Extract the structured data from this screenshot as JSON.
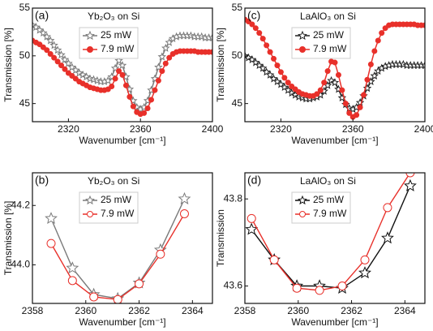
{
  "chart_data": [
    {
      "type": "line",
      "panel_label": "(a)",
      "annotation": "Yb₂O₃ on Si",
      "xlabel": "Wavenumber [cm⁻¹]",
      "ylabel": "Transmission [%]",
      "xlim": [
        2300,
        2400
      ],
      "xticks": [
        2320,
        2360,
        2400
      ],
      "ylim": [
        43.1,
        55
      ],
      "yticks": [
        45,
        50,
        55
      ],
      "legend": "upper center",
      "x": [
        2300,
        2302,
        2304,
        2306,
        2308,
        2310,
        2312,
        2314,
        2316,
        2318,
        2320,
        2322,
        2324,
        2326,
        2328,
        2330,
        2332,
        2334,
        2336,
        2338,
        2340,
        2342,
        2344,
        2346,
        2348,
        2350,
        2352,
        2354,
        2356,
        2358,
        2360,
        2362,
        2364,
        2366,
        2368,
        2370,
        2372,
        2374,
        2376,
        2378,
        2380,
        2382,
        2384,
        2386,
        2388,
        2390,
        2392,
        2394,
        2396,
        2398,
        2400
      ],
      "series": [
        {
          "name": "25 mW",
          "color": "#7a7a7a",
          "marker": "star",
          "filled": false,
          "values": [
            53.2,
            53.0,
            52.7,
            52.4,
            52.0,
            51.6,
            51.1,
            50.6,
            50.1,
            49.6,
            49.2,
            48.8,
            48.5,
            48.2,
            48.0,
            47.8,
            47.6,
            47.5,
            47.4,
            47.3,
            47.3,
            47.4,
            47.8,
            48.7,
            49.5,
            49.0,
            47.8,
            46.5,
            45.3,
            44.6,
            44.4,
            44.6,
            45.3,
            46.4,
            47.6,
            48.8,
            49.9,
            50.8,
            51.4,
            51.8,
            52.0,
            52.1,
            52.1,
            52.1,
            52.1,
            52.0,
            52.0,
            52.0,
            51.9,
            51.9,
            51.9
          ]
        },
        {
          "name": "7.9 mW",
          "color": "#e8302a",
          "marker": "circle",
          "filled": true,
          "values": [
            51.6,
            51.4,
            51.2,
            50.9,
            50.6,
            50.2,
            49.8,
            49.4,
            49.0,
            48.6,
            48.2,
            47.9,
            47.6,
            47.3,
            47.1,
            46.9,
            46.7,
            46.6,
            46.5,
            46.4,
            46.4,
            46.5,
            46.8,
            47.6,
            48.4,
            48.0,
            46.9,
            45.7,
            44.7,
            44.1,
            43.9,
            44.0,
            44.5,
            45.4,
            46.4,
            47.4,
            48.4,
            49.2,
            49.8,
            50.2,
            50.4,
            50.5,
            50.5,
            50.5,
            50.5,
            50.5,
            50.4,
            50.4,
            50.4,
            50.4,
            50.4
          ]
        }
      ]
    },
    {
      "type": "line",
      "panel_label": "(c)",
      "annotation": "LaAlO₃ on Si",
      "xlabel": "Wavenumber [cm⁻¹]",
      "ylabel": "Transmission [%]",
      "xlim": [
        2300,
        2400
      ],
      "xticks": [
        2320,
        2360,
        2400
      ],
      "ylim": [
        43.1,
        55
      ],
      "yticks": [
        45,
        50,
        55
      ],
      "legend": "upper center",
      "x": [
        2300,
        2302,
        2304,
        2306,
        2308,
        2310,
        2312,
        2314,
        2316,
        2318,
        2320,
        2322,
        2324,
        2326,
        2328,
        2330,
        2332,
        2334,
        2336,
        2338,
        2340,
        2342,
        2344,
        2346,
        2348,
        2350,
        2352,
        2354,
        2356,
        2358,
        2360,
        2362,
        2364,
        2366,
        2368,
        2370,
        2372,
        2374,
        2376,
        2378,
        2380,
        2382,
        2384,
        2386,
        2388,
        2390,
        2392,
        2394,
        2396,
        2398,
        2400
      ],
      "series": [
        {
          "name": "25 mW",
          "color": "#222222",
          "marker": "star",
          "filled": false,
          "values": [
            50.0,
            49.8,
            49.6,
            49.3,
            49.0,
            48.7,
            48.3,
            48.0,
            47.6,
            47.3,
            47.0,
            46.7,
            46.4,
            46.1,
            45.9,
            45.7,
            45.6,
            45.5,
            45.5,
            45.6,
            45.7,
            45.9,
            46.3,
            46.9,
            47.4,
            47.2,
            46.5,
            45.6,
            44.9,
            44.5,
            44.4,
            44.6,
            45.1,
            45.8,
            46.6,
            47.3,
            47.9,
            48.4,
            48.7,
            48.9,
            49.0,
            49.1,
            49.1,
            49.1,
            49.1,
            49.0,
            49.0,
            49.0,
            49.0,
            49.0,
            49.0
          ]
        },
        {
          "name": "7.9 mW",
          "color": "#e8302a",
          "marker": "circle",
          "filled": true,
          "values": [
            53.8,
            53.6,
            53.3,
            52.9,
            52.4,
            51.8,
            51.1,
            50.4,
            49.7,
            49.0,
            48.3,
            47.7,
            47.2,
            46.8,
            46.5,
            46.2,
            46.0,
            45.9,
            45.8,
            45.8,
            46.0,
            46.4,
            47.2,
            48.4,
            49.4,
            49.3,
            48.0,
            46.4,
            45.0,
            44.0,
            43.6,
            43.8,
            44.6,
            45.9,
            47.5,
            49.1,
            50.5,
            51.6,
            52.4,
            52.9,
            53.2,
            53.3,
            53.3,
            53.3,
            53.3,
            53.3,
            53.3,
            53.3,
            53.2,
            53.2,
            53.2
          ]
        }
      ]
    },
    {
      "type": "line",
      "panel_label": "(b)",
      "annotation": "Yb₂O₃ on Si",
      "xlabel": "Wavenumber [cm⁻¹]",
      "ylabel": "Transmission [%]",
      "xlim": [
        2358,
        2364.75
      ],
      "xticks": [
        2358,
        2360,
        2362,
        2364
      ],
      "ylim": [
        43.87,
        44.31
      ],
      "yticks": [
        {
          "value": 44.0,
          "label": "44.0"
        },
        {
          "value": 44.2,
          "label": "44.2"
        }
      ],
      "legend": "upper center",
      "x": [
        2358.7,
        2359.5,
        2360.3,
        2361.2,
        2362.0,
        2362.8,
        2363.7
      ],
      "series": [
        {
          "name": "25 mW",
          "color": "#7a7a7a",
          "marker": "star",
          "filled": false,
          "values": [
            44.156,
            43.989,
            43.9,
            43.886,
            43.939,
            44.05,
            44.222
          ]
        },
        {
          "name": "7.9 mW",
          "color": "#e8302a",
          "marker": "circle",
          "filled": false,
          "values": [
            44.072,
            43.947,
            43.892,
            43.883,
            43.936,
            44.036,
            44.172
          ]
        }
      ]
    },
    {
      "type": "line",
      "panel_label": "(d)",
      "annotation": "LaAlO₃ on Si",
      "xlabel": "Wavenumber [cm⁻¹]",
      "ylabel": "Transmission",
      "xlim": [
        2358,
        2364.75
      ],
      "xticks": [
        2358,
        2360,
        2362,
        2364
      ],
      "ylim": [
        43.56,
        43.86
      ],
      "yticks": [
        {
          "value": 43.6,
          "label": "43.6"
        },
        {
          "value": 43.8,
          "label": "43.8"
        }
      ],
      "legend": "upper center",
      "x": [
        2358.25,
        2359.1,
        2359.95,
        2360.8,
        2361.65,
        2362.5,
        2363.35,
        2364.2
      ],
      "series": [
        {
          "name": "25 mW",
          "color": "#111111",
          "marker": "star",
          "filled": false,
          "values": [
            43.73,
            43.66,
            43.6,
            43.6,
            43.595,
            43.63,
            43.71,
            43.83
          ]
        },
        {
          "name": "7.9 mW",
          "color": "#e8302a",
          "marker": "circle",
          "filled": false,
          "values": [
            43.755,
            43.66,
            43.595,
            43.59,
            43.6,
            43.66,
            43.78,
            43.86
          ]
        }
      ]
    }
  ]
}
